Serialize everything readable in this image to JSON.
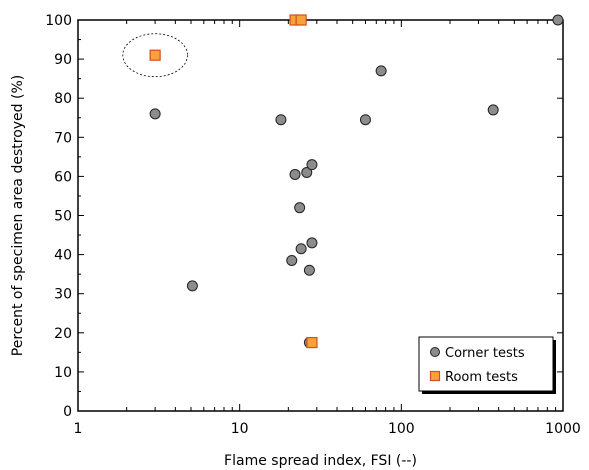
{
  "chart_data": {
    "type": "scatter",
    "title": "",
    "xlabel": "Flame spread index, FSI (--)",
    "ylabel": "Percent of specimen area destroyed (%)",
    "x_scale": "log",
    "xlim": [
      1,
      1000
    ],
    "ylim": [
      0,
      100
    ],
    "x_ticks": [
      "1",
      "10",
      "100",
      "1000"
    ],
    "y_ticks": [
      "0",
      "10",
      "20",
      "30",
      "40",
      "50",
      "60",
      "70",
      "80",
      "90",
      "100"
    ],
    "grid": false,
    "legend_position": "bottom-right",
    "series": [
      {
        "name": "Corner tests",
        "marker": "circle",
        "color": "#8c8c8c",
        "points": [
          {
            "x": 3,
            "y": 76
          },
          {
            "x": 5.1,
            "y": 32
          },
          {
            "x": 18,
            "y": 74.5
          },
          {
            "x": 21,
            "y": 38.5
          },
          {
            "x": 22,
            "y": 60.5
          },
          {
            "x": 23.5,
            "y": 52
          },
          {
            "x": 24,
            "y": 41.5
          },
          {
            "x": 26,
            "y": 61
          },
          {
            "x": 27,
            "y": 36
          },
          {
            "x": 28,
            "y": 63
          },
          {
            "x": 28,
            "y": 43
          },
          {
            "x": 27,
            "y": 17.5
          },
          {
            "x": 60,
            "y": 74.5
          },
          {
            "x": 75,
            "y": 87
          },
          {
            "x": 370,
            "y": 77
          },
          {
            "x": 930,
            "y": 100
          }
        ]
      },
      {
        "name": "Room tests",
        "marker": "square",
        "color": "#f7a23a",
        "points": [
          {
            "x": 3,
            "y": 91
          },
          {
            "x": 22,
            "y": 100
          },
          {
            "x": 24,
            "y": 100
          },
          {
            "x": 28,
            "y": 17.5
          }
        ]
      }
    ],
    "annotations": [
      {
        "type": "dashed-ellipse",
        "x": 3,
        "y": 91,
        "rx_decades": 0.2,
        "ry_units": 5.5
      }
    ]
  }
}
